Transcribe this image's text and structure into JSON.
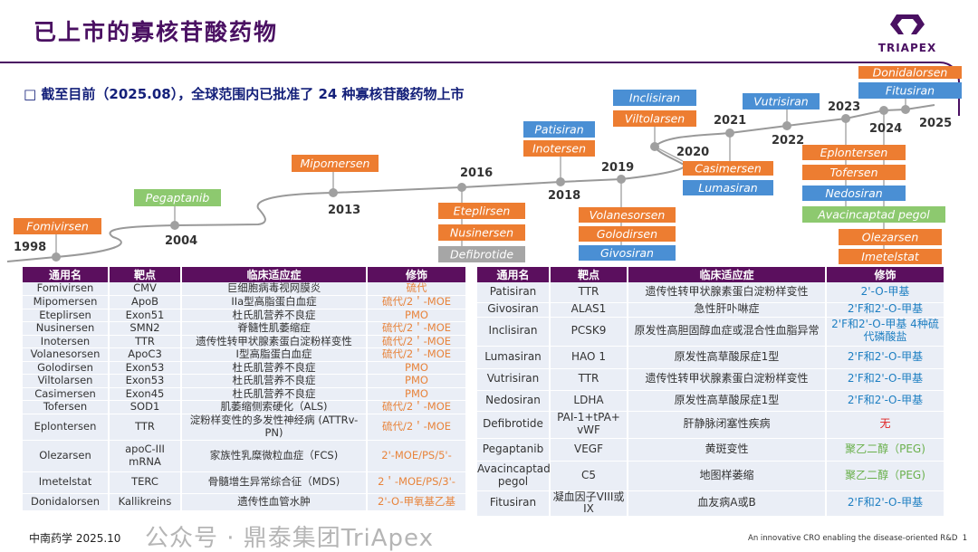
{
  "header": {
    "title": "已上市的寡核苷酸药物",
    "logo_text": "TRIAPEX",
    "subtitle": "□  截至目前（2025.08），全球范围内已批准了 24 种寡核苷酸药物上市"
  },
  "colors": {
    "brand": "#4a1062",
    "header_bg": "#5b0f5e",
    "orange": "#ed7d31",
    "blue": "#4a8fd4",
    "green": "#8dc96f",
    "gray": "#a6a6a6",
    "mod_orange": "#e8843c",
    "mod_blue": "#1e7fc2",
    "mod_red": "#e02020",
    "mod_green": "#6ab04c"
  },
  "timeline": [
    {
      "year": "1998",
      "drugs": [
        {
          "name": "Fomivirsen",
          "type": "orange"
        }
      ]
    },
    {
      "year": "2004",
      "drugs": [
        {
          "name": "Pegaptanib",
          "type": "green"
        }
      ]
    },
    {
      "year": "2013",
      "drugs": [
        {
          "name": "Mipomersen",
          "type": "orange"
        }
      ]
    },
    {
      "year": "2016",
      "drugs": [
        {
          "name": "Eteplirsen",
          "type": "orange"
        },
        {
          "name": "Nusinersen",
          "type": "orange"
        },
        {
          "name": "Defibrotide",
          "type": "gray"
        }
      ]
    },
    {
      "year": "2018",
      "drugs": [
        {
          "name": "Patisiran",
          "type": "blue"
        },
        {
          "name": "Inotersen",
          "type": "orange"
        }
      ]
    },
    {
      "year": "2019",
      "drugs": [
        {
          "name": "Volanesorsen",
          "type": "orange"
        },
        {
          "name": "Golodirsen",
          "type": "orange"
        },
        {
          "name": "Givosiran",
          "type": "blue"
        }
      ]
    },
    {
      "year": "2020",
      "drugs": [
        {
          "name": "Inclisiran",
          "type": "blue"
        },
        {
          "name": "Viltolarsen",
          "type": "orange"
        },
        {
          "name": "Casimersen",
          "type": "orange"
        },
        {
          "name": "Lumasiran",
          "type": "blue"
        }
      ]
    },
    {
      "year": "2021",
      "drugs": []
    },
    {
      "year": "2022",
      "drugs": [
        {
          "name": "Vutrisiran",
          "type": "blue"
        }
      ]
    },
    {
      "year": "2023",
      "drugs": [
        {
          "name": "Eplontersen",
          "type": "orange"
        },
        {
          "name": "Tofersen",
          "type": "orange"
        },
        {
          "name": "Nedosiran",
          "type": "blue"
        },
        {
          "name": "Avacincaptad  pegol",
          "type": "green"
        }
      ]
    },
    {
      "year": "2024",
      "drugs": [
        {
          "name": "Olezarsen",
          "type": "orange"
        },
        {
          "name": "Imetelstat",
          "type": "orange"
        }
      ]
    },
    {
      "year": "2025",
      "drugs": [
        {
          "name": "Donidalorsen",
          "type": "orange"
        },
        {
          "name": "Fitusiran",
          "type": "blue"
        }
      ]
    }
  ],
  "table_headers": [
    "通用名",
    "靶点",
    "临床适应症",
    "修饰"
  ],
  "left_table": [
    [
      "Fomivirsen",
      "CMV",
      "巨细胞病毒视网膜炎",
      "硫代",
      "mod_orange"
    ],
    [
      "Mipomersen",
      "ApoB",
      "IIa型高脂蛋白血症",
      "硫代/2＇-MOE",
      "mod_orange"
    ],
    [
      "Eteplirsen",
      "Exon51",
      "杜氏肌营养不良症",
      "PMO",
      "mod_orange"
    ],
    [
      "Nusinersen",
      "SMN2",
      "脊髓性肌萎缩症",
      "硫代/2＇-MOE",
      "mod_orange"
    ],
    [
      "Inotersen",
      "TTR",
      "遗传性转甲状腺素蛋白淀粉样变性",
      "硫代/2＇-MOE",
      "mod_orange"
    ],
    [
      "Volanesorsen",
      "ApoC3",
      "I型高脂蛋白血症",
      "硫代/2＇-MOE",
      "mod_orange"
    ],
    [
      "Golodirsen",
      "Exon53",
      "杜氏肌营养不良症",
      "PMO",
      "mod_orange"
    ],
    [
      "Viltolarsen",
      "Exon53",
      "杜氏肌营养不良症",
      "PMO",
      "mod_orange"
    ],
    [
      "Casimersen",
      "Exon45",
      "杜氏肌营养不良症",
      "PMO",
      "mod_orange"
    ],
    [
      "Tofersen",
      "SOD1",
      "肌萎缩侧索硬化（ALS)",
      "硫代/2＇-MOE",
      "mod_orange"
    ],
    [
      "Eplontersen",
      "TTR",
      "淀粉样变性的多发性神经病 (ATTRv-PN)",
      "硫代/2＇-MOE",
      "mod_orange"
    ],
    [
      "Olezarsen",
      "apoC-III mRNA",
      "家族性乳糜微粒血症（FCS)",
      "2'-MOE/PS/5'-",
      "mod_orange"
    ],
    [
      "Imetelstat",
      "TERC",
      "骨髓增生异常综合征（MDS)",
      "2＇-MOE/PS/3'-",
      "mod_orange"
    ],
    [
      "Donidalorsen",
      "Kallikreins",
      "遗传性血管水肿",
      "2'-O-甲氧基乙基",
      "mod_orange"
    ]
  ],
  "right_table": [
    [
      "Patisiran",
      "TTR",
      "遗传性转甲状腺素蛋白淀粉样变性",
      "2'-O-甲基",
      "mod_blue"
    ],
    [
      "Givosiran",
      "ALAS1",
      "急性肝卟啉症",
      "2'F和2'-O-甲基",
      "mod_blue"
    ],
    [
      "Inclisiran",
      "PCSK9",
      "原发性高胆固醇血症或混合性血脂异常",
      "2'F和2'-O-甲基 4种硫代磷酸盐",
      "mod_blue"
    ],
    [
      "Lumasiran",
      "HAO 1",
      "原发性高草酸尿症1型",
      "2'F和2'-O-甲基",
      "mod_blue"
    ],
    [
      "Vutrisiran",
      "TTR",
      "遗传性转甲状腺素蛋白淀粉样变性",
      "2'F和2'-O-甲基",
      "mod_blue"
    ],
    [
      "Nedosiran",
      "LDHA",
      "原发性高草酸尿症1型",
      "2'F和2'-O-甲基",
      "mod_blue"
    ],
    [
      "Defibrotide",
      "PAI-1+tPA+ vWF",
      "肝静脉闭塞性疾病",
      "无",
      "mod_red"
    ],
    [
      "Pegaptanib",
      "VEGF",
      "黄斑变性",
      "聚乙二醇（PEG)",
      "mod_green"
    ],
    [
      "Avacincaptad pegol",
      "C5",
      "地图样萎缩",
      "聚乙二醇（PEG)",
      "mod_green"
    ],
    [
      "Fitusiran",
      "凝血因子VIII或IX",
      "血友病A或B",
      "2'F和2'-O-甲基",
      "mod_blue"
    ]
  ],
  "footer": {
    "source": "中南药学 2025.10",
    "tagline": "An innovative CRO enabling the disease-oriented R&D",
    "page": "1"
  },
  "watermark": "公众号 · 鼎泰集团TriApex"
}
